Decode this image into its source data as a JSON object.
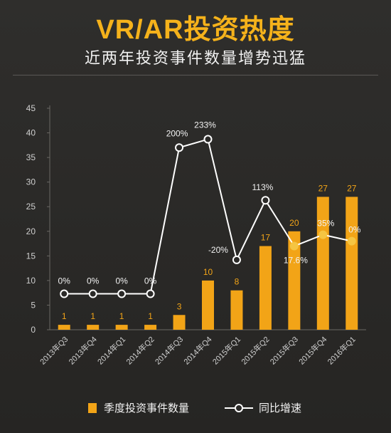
{
  "header": {
    "title": "VR/AR投资热度",
    "subtitle": "近两年投资事件数量增势迅猛"
  },
  "legend": {
    "bars_label": "季度投资事件数量",
    "line_label": "同比增速"
  },
  "colors": {
    "bar": "#f2a417",
    "bar_label": "#f2a417",
    "line": "#ffffff",
    "line_highlight": "#f5c542",
    "axis_text": "#cfcfcf",
    "grid": "#6a6864",
    "title": "#f5b21b"
  },
  "chart_data": {
    "type": "bar",
    "title": "VR/AR投资热度",
    "subtitle": "近两年投资事件数量增势迅猛",
    "xlabel": "",
    "ylabel": "",
    "ylim": [
      0,
      45
    ],
    "yticks": [
      0,
      5,
      10,
      15,
      20,
      25,
      30,
      35,
      40,
      45
    ],
    "grid": false,
    "legend_position": "bottom",
    "categories": [
      "2013年Q3",
      "2013年Q4",
      "2014年Q1",
      "2014年Q2",
      "2014年Q3",
      "2014年Q4",
      "2015年Q1",
      "2015年Q2",
      "2015年Q3",
      "2015年Q4",
      "2016年Q1"
    ],
    "series": [
      {
        "name": "季度投资事件数量",
        "type": "bar",
        "values": [
          1,
          1,
          1,
          1,
          3,
          10,
          8,
          17,
          20,
          27,
          27
        ],
        "labels": [
          "1",
          "1",
          "1",
          "1",
          "3",
          "10",
          "8",
          "17",
          "20",
          "27",
          "27"
        ]
      },
      {
        "name": "同比增速",
        "type": "line",
        "values": [
          7.3,
          7.3,
          7.3,
          7.3,
          37,
          38.7,
          14.2,
          26.3,
          17,
          19.3,
          18
        ],
        "labels": [
          "0%",
          "0%",
          "0%",
          "0%",
          "200%",
          "233%",
          "-20%",
          "113%",
          "17.6%",
          "35%",
          "0%"
        ]
      }
    ]
  }
}
